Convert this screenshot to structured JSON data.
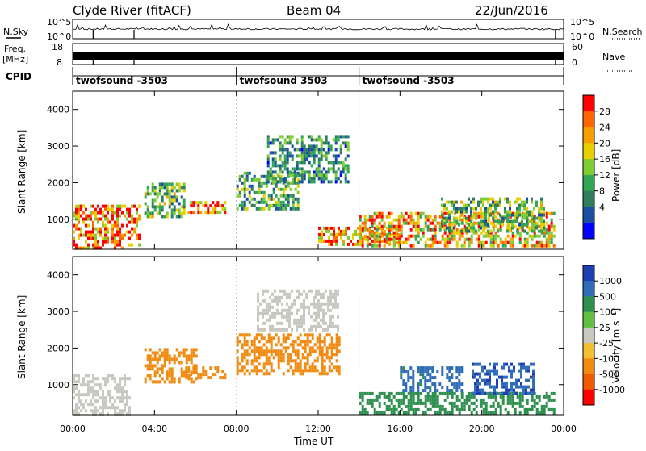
{
  "header": {
    "station": "Clyde River (fitACF)",
    "beam": "Beam 04",
    "date": "22/Jun/2016"
  },
  "strips": {
    "nsky_label": "N.Sky",
    "nsky_ticks": [
      "10^5",
      "10^0"
    ],
    "nsearch_label": "N.Search",
    "nsearch_ticks": [
      "10^5",
      "10^0"
    ],
    "freq_label_1": "Freq.",
    "freq_label_2": "[MHz]",
    "freq_ticks": [
      "18",
      "8"
    ],
    "nave_label": "Nave",
    "nave_ticks": [
      "60",
      "0"
    ],
    "cpid_label": "CPID",
    "cpid_segments": [
      {
        "label": "twofsound -3503",
        "start_hour": 0
      },
      {
        "label": "twofsound 3503",
        "start_hour": 8
      },
      {
        "label": "twofsound -3503",
        "start_hour": 14
      }
    ]
  },
  "axes": {
    "ylabel": "Slant Range [km]",
    "xlabel": "Time UT",
    "xticks": [
      "00:00",
      "04:00",
      "08:00",
      "12:00",
      "16:00",
      "20:00",
      "00:00"
    ],
    "yticks": [
      "1000",
      "2000",
      "3000",
      "4000"
    ]
  },
  "colorbars": {
    "power": {
      "label": "Power [dB]",
      "ticks": [
        "28",
        "24",
        "20",
        "16",
        "12",
        "8",
        "4"
      ],
      "colors": [
        "#ff0000",
        "#ff6600",
        "#f5a000",
        "#e8d000",
        "#7fcc33",
        "#33a655",
        "#2e7d5b",
        "#1a4fa0",
        "#0000ff"
      ]
    },
    "velocity": {
      "label": "Velocity [m s⁻¹]",
      "ticks": [
        "1000",
        "500",
        "100",
        "25",
        "-25",
        "-100",
        "-500",
        "-1000"
      ],
      "colors": [
        "#1e3fb0",
        "#2f6db8",
        "#2e8f4f",
        "#62c040",
        "#c8c8c0",
        "#f0c030",
        "#f08a10",
        "#f05a00",
        "#ff0000"
      ]
    }
  },
  "chart_data": [
    {
      "type": "heatmap",
      "title": "Power",
      "xlabel": "Time UT",
      "ylabel": "Slant Range [km]",
      "xlim_hours": [
        0,
        24
      ],
      "ylim_km": [
        180,
        4500
      ],
      "colorbar_label": "Power [dB]",
      "colorbar_range_db": [
        0,
        32
      ],
      "regions": [
        {
          "t": [
            0,
            3.2
          ],
          "r": [
            250,
            1400
          ],
          "value": 26
        },
        {
          "t": [
            3.5,
            5.5
          ],
          "r": [
            1100,
            2000
          ],
          "value": 14
        },
        {
          "t": [
            5.5,
            7.5
          ],
          "r": [
            1200,
            1500
          ],
          "value": 26
        },
        {
          "t": [
            8,
            11
          ],
          "r": [
            1300,
            2300
          ],
          "value": 12
        },
        {
          "t": [
            9.5,
            13.5
          ],
          "r": [
            2000,
            3300
          ],
          "value": 10
        },
        {
          "t": [
            12,
            16
          ],
          "r": [
            300,
            800
          ],
          "value": 26
        },
        {
          "t": [
            14,
            23.5
          ],
          "r": [
            300,
            1200
          ],
          "value": 22
        },
        {
          "t": [
            18,
            23
          ],
          "r": [
            700,
            1600
          ],
          "value": 14
        }
      ]
    },
    {
      "type": "heatmap",
      "title": "Velocity",
      "xlabel": "Time UT",
      "ylabel": "Slant Range [km]",
      "xlim_hours": [
        0,
        24
      ],
      "ylim_km": [
        180,
        4500
      ],
      "colorbar_label": "Velocity [m s⁻¹]",
      "colorbar_ticks": [
        1000,
        500,
        100,
        25,
        -25,
        -100,
        -500,
        -1000
      ],
      "regions": [
        {
          "t": [
            0,
            2.8
          ],
          "r": [
            200,
            1300
          ],
          "value": 0
        },
        {
          "t": [
            3.5,
            6
          ],
          "r": [
            1100,
            2000
          ],
          "value": -200
        },
        {
          "t": [
            5.5,
            7.5
          ],
          "r": [
            1200,
            1500
          ],
          "value": -300
        },
        {
          "t": [
            8,
            13
          ],
          "r": [
            1300,
            2400
          ],
          "value": -150
        },
        {
          "t": [
            9,
            13
          ],
          "r": [
            2500,
            3600
          ],
          "value": 0
        },
        {
          "t": [
            14,
            23.5
          ],
          "r": [
            250,
            800
          ],
          "value": 150
        },
        {
          "t": [
            16,
            19
          ],
          "r": [
            800,
            1500
          ],
          "value": 700
        },
        {
          "t": [
            19.5,
            22.5
          ],
          "r": [
            800,
            1600
          ],
          "value": 900
        }
      ]
    }
  ]
}
